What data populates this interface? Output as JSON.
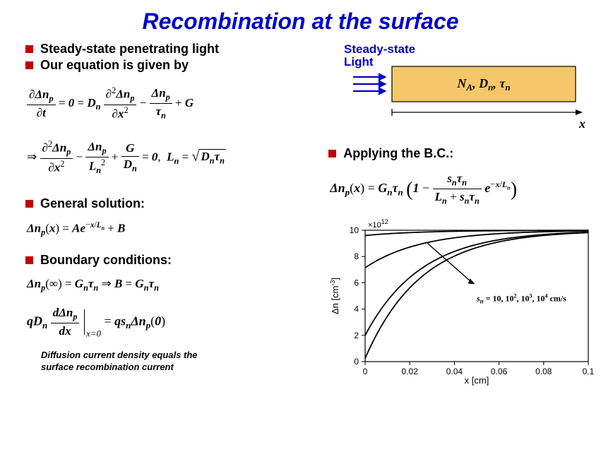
{
  "title": "Recombination at the surface",
  "left": {
    "bullets": {
      "b1": "Steady-state penetrating light",
      "b2": "Our equation is given by",
      "b3": "General solution:",
      "b4": "Boundary conditions:"
    },
    "caption1": "Diffusion current density equals the",
    "caption2": "surface recombination current"
  },
  "right": {
    "light_label1": "Steady-state",
    "light_label2": "Light",
    "slab_label": "N_A, D_n, τ_n",
    "x_axis_slab": "x",
    "bc_bullet": "Applying the B.C.:"
  },
  "chart": {
    "type": "line",
    "xlim": [
      0,
      0.1
    ],
    "ylim": [
      0,
      10
    ],
    "xticks": [
      0,
      0.02,
      0.04,
      0.06,
      0.08,
      0.1
    ],
    "yticks": [
      0,
      2,
      4,
      6,
      8,
      10
    ],
    "x_label": "x [cm]",
    "y_label": "Δn [cm⁻³]",
    "mult_label": "×10¹²",
    "line_color": "#000000",
    "grid_color": "#000000",
    "annotation": "sₙ = 10, 10², 10³, 10⁴ cm/s",
    "Ln": 0.025,
    "GnTn": 10,
    "series_sn_tau_over_L": [
      0.04,
      0.2857,
      0.8,
      0.9756
    ]
  },
  "colors": {
    "title": "#0000cc",
    "bullet": "#c00000",
    "slab_fill": "#f6c76a",
    "light_arrow": "#0000cc",
    "text": "#000000",
    "background": "#ffffff"
  },
  "typography": {
    "title_fontsize": 32,
    "bullet_fontsize": 18,
    "eq_fontsize": 17,
    "caption_fontsize": 13,
    "axis_fontsize": 12
  }
}
